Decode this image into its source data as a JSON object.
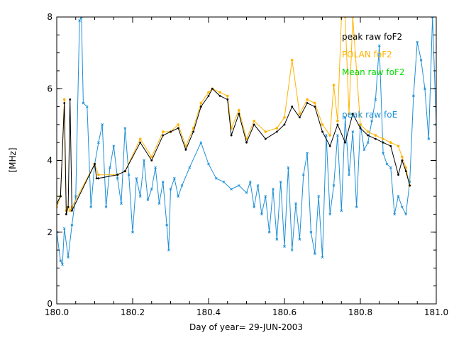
{
  "chart_data": {
    "type": "line",
    "xlabel": "Day of year= 29-JUN-2003",
    "ylabel": "[MHz]",
    "xlim": [
      180.0,
      181.0
    ],
    "ylim": [
      0,
      8
    ],
    "xticks": [
      180.0,
      180.2,
      180.4,
      180.6,
      180.8,
      181.0
    ],
    "xtick_labels": [
      "180.0",
      "180.2",
      "180.4",
      "180.6",
      "180.8",
      "181.0"
    ],
    "yticks": [
      0,
      2,
      4,
      6,
      8
    ],
    "ytick_labels": [
      "0",
      "2",
      "4",
      "6",
      "8"
    ],
    "legend_position": "top-right",
    "series": [
      {
        "name": "peak raw foF2",
        "color": "#000000",
        "x": [
          180.0,
          180.01,
          180.02,
          180.025,
          180.03,
          180.035,
          180.04,
          180.1,
          180.105,
          180.11,
          180.16,
          180.18,
          180.22,
          180.25,
          180.28,
          180.3,
          180.32,
          180.34,
          180.36,
          180.38,
          180.4,
          180.41,
          180.43,
          180.45,
          180.46,
          180.48,
          180.5,
          180.52,
          180.55,
          180.58,
          180.6,
          180.62,
          180.64,
          180.66,
          180.68,
          180.7,
          180.72,
          180.74,
          180.76,
          180.78,
          180.8,
          180.82,
          180.84,
          180.86,
          180.88,
          180.9,
          180.91,
          180.92,
          180.93
        ],
        "y": [
          2.8,
          3.0,
          5.6,
          2.5,
          2.7,
          5.7,
          2.6,
          3.9,
          3.5,
          3.5,
          3.6,
          3.7,
          4.5,
          4.0,
          4.7,
          4.8,
          4.9,
          4.3,
          4.8,
          5.5,
          5.8,
          6.0,
          5.8,
          5.7,
          4.7,
          5.3,
          4.5,
          5.0,
          4.6,
          4.8,
          5.0,
          5.5,
          5.2,
          5.6,
          5.5,
          4.8,
          4.4,
          5.0,
          4.5,
          5.3,
          4.9,
          4.7,
          4.6,
          4.5,
          4.4,
          3.6,
          4.0,
          3.7,
          3.3
        ]
      },
      {
        "name": "POLAN foF2",
        "color": "#ffb300",
        "x": [
          180.0,
          180.01,
          180.02,
          180.025,
          180.03,
          180.035,
          180.04,
          180.1,
          180.11,
          180.16,
          180.18,
          180.22,
          180.25,
          180.28,
          180.3,
          180.32,
          180.34,
          180.36,
          180.38,
          180.4,
          180.41,
          180.43,
          180.45,
          180.46,
          180.48,
          180.5,
          180.52,
          180.55,
          180.58,
          180.6,
          180.62,
          180.64,
          180.66,
          180.68,
          180.7,
          180.72,
          180.73,
          180.74,
          180.75,
          180.76,
          180.77,
          180.78,
          180.8,
          180.82,
          180.84,
          180.86,
          180.88,
          180.9,
          180.91,
          180.92,
          180.93
        ],
        "y": [
          2.7,
          3.0,
          5.7,
          2.6,
          2.7,
          2.6,
          2.7,
          3.9,
          3.6,
          3.6,
          3.7,
          4.6,
          4.1,
          4.8,
          4.8,
          5.0,
          4.4,
          4.9,
          5.6,
          5.9,
          6.0,
          5.9,
          5.8,
          4.9,
          5.4,
          4.6,
          5.1,
          4.8,
          4.9,
          5.2,
          6.8,
          5.3,
          5.7,
          5.6,
          5.0,
          4.7,
          6.1,
          5.1,
          8.0,
          8.0,
          5.3,
          8.0,
          5.0,
          4.8,
          4.7,
          4.6,
          4.5,
          4.4,
          4.1,
          3.8,
          3.3
        ]
      },
      {
        "name": "Mean raw foF2",
        "color": "#00dd00",
        "x": [],
        "y": []
      },
      {
        "name": "peak raw foE",
        "color": "#1e8fd6",
        "x": [
          180.0,
          180.01,
          180.015,
          180.02,
          180.03,
          180.04,
          180.05,
          180.06,
          180.065,
          180.07,
          180.08,
          180.09,
          180.1,
          180.11,
          180.12,
          180.13,
          180.14,
          180.15,
          180.16,
          180.17,
          180.18,
          180.19,
          180.2,
          180.21,
          180.22,
          180.23,
          180.24,
          180.25,
          180.26,
          180.27,
          180.28,
          180.29,
          180.295,
          180.3,
          180.31,
          180.32,
          180.33,
          180.35,
          180.38,
          180.4,
          180.42,
          180.44,
          180.46,
          180.48,
          180.5,
          180.51,
          180.52,
          180.53,
          180.54,
          180.55,
          180.56,
          180.57,
          180.58,
          180.59,
          180.6,
          180.61,
          180.62,
          180.63,
          180.64,
          180.65,
          180.66,
          180.67,
          180.68,
          180.69,
          180.7,
          180.71,
          180.72,
          180.73,
          180.74,
          180.75,
          180.76,
          180.77,
          180.78,
          180.79,
          180.8,
          180.81,
          180.82,
          180.83,
          180.84,
          180.85,
          180.86,
          180.87,
          180.88,
          180.89,
          180.9,
          180.91,
          180.92,
          180.93,
          180.94,
          180.95,
          180.96,
          180.97,
          180.98,
          180.99,
          181.0
        ],
        "y": [
          2.0,
          1.2,
          1.1,
          2.1,
          1.3,
          2.2,
          3.0,
          7.9,
          8.0,
          5.6,
          5.5,
          2.7,
          3.9,
          4.5,
          5.0,
          2.7,
          3.8,
          4.4,
          3.5,
          2.8,
          4.9,
          3.6,
          2.0,
          3.5,
          3.0,
          4.0,
          2.9,
          3.2,
          3.8,
          2.8,
          3.4,
          2.2,
          1.5,
          3.2,
          3.5,
          3.0,
          3.3,
          3.8,
          4.5,
          3.9,
          3.5,
          3.4,
          3.2,
          3.3,
          3.1,
          3.4,
          2.7,
          3.3,
          2.5,
          3.0,
          2.0,
          3.2,
          1.8,
          3.4,
          1.6,
          3.8,
          1.5,
          2.8,
          1.8,
          3.6,
          4.2,
          2.0,
          1.4,
          3.0,
          1.3,
          4.7,
          2.5,
          3.3,
          4.7,
          2.6,
          5.2,
          3.6,
          4.8,
          2.7,
          5.0,
          4.3,
          4.5,
          5.1,
          5.7,
          7.2,
          4.2,
          3.9,
          3.8,
          2.5,
          3.0,
          2.7,
          2.5,
          3.4,
          5.8,
          7.3,
          6.8,
          6.0,
          4.6,
          8.0,
          5.0
        ]
      }
    ]
  }
}
